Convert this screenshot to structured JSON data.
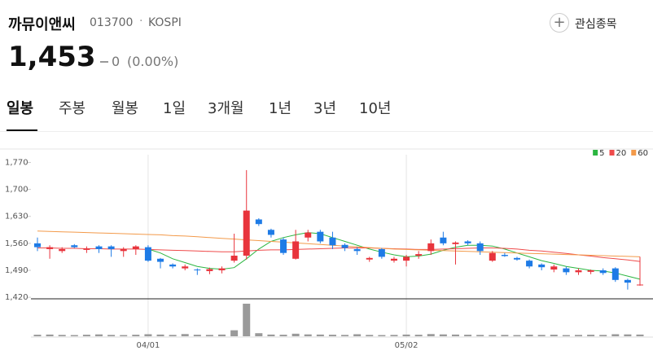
{
  "header": {
    "name": "까뮤이앤씨",
    "code": "013700",
    "market": "KOSPI",
    "watch": "관심종목",
    "price": "1,453",
    "change": "0",
    "change_pct": "(0.00%)"
  },
  "tabs": [
    "일봉",
    "주봉",
    "월봉",
    "1일",
    "3개월",
    "1년",
    "3년",
    "10년"
  ],
  "chart_data": {
    "type": "candlestick",
    "categories": [
      null,
      null,
      null,
      null,
      null,
      null,
      null,
      null,
      null,
      "04/01",
      null,
      null,
      null,
      null,
      null,
      null,
      null,
      null,
      null,
      null,
      null,
      null,
      null,
      null,
      null,
      null,
      null,
      null,
      null,
      null,
      "05/02",
      null,
      null,
      null,
      null,
      null,
      null,
      null,
      null,
      null,
      null,
      null,
      null,
      null,
      null,
      null,
      null,
      null,
      null,
      null
    ],
    "open": [
      1560,
      1545,
      1540,
      1555,
      1543,
      1552,
      1552,
      1540,
      1545,
      1550,
      1520,
      1505,
      1495,
      1492,
      1488,
      1490,
      1515,
      1528,
      1622,
      1595,
      1570,
      1520,
      1575,
      1590,
      1575,
      1556,
      1545,
      1518,
      1545,
      1515,
      1515,
      1528,
      1540,
      1575,
      1558,
      1565,
      1560,
      1515,
      1530,
      1522,
      1515,
      1505,
      1492,
      1495,
      1485,
      1486,
      1490,
      1495,
      1465,
      1453
    ],
    "high": [
      1575,
      1555,
      1550,
      1558,
      1552,
      1555,
      1555,
      1550,
      1555,
      1555,
      1522,
      1508,
      1505,
      1495,
      1497,
      1500,
      1585,
      1750,
      1625,
      1598,
      1575,
      1595,
      1595,
      1595,
      1590,
      1560,
      1550,
      1525,
      1548,
      1525,
      1530,
      1540,
      1570,
      1590,
      1565,
      1568,
      1565,
      1540,
      1535,
      1525,
      1518,
      1508,
      1505,
      1500,
      1495,
      1492,
      1495,
      1498,
      1468,
      1525
    ],
    "low": [
      1540,
      1520,
      1535,
      1548,
      1535,
      1535,
      1525,
      1525,
      1530,
      1512,
      1495,
      1495,
      1490,
      1478,
      1480,
      1482,
      1510,
      1518,
      1605,
      1575,
      1530,
      1518,
      1565,
      1560,
      1545,
      1540,
      1530,
      1512,
      1520,
      1510,
      1500,
      1520,
      1530,
      1555,
      1505,
      1555,
      1530,
      1512,
      1525,
      1515,
      1495,
      1490,
      1485,
      1478,
      1478,
      1480,
      1478,
      1460,
      1440,
      1450
    ],
    "close": [
      1550,
      1550,
      1545,
      1550,
      1547,
      1545,
      1545,
      1545,
      1552,
      1515,
      1512,
      1500,
      1500,
      1490,
      1493,
      1495,
      1528,
      1645,
      1610,
      1582,
      1535,
      1565,
      1588,
      1565,
      1555,
      1548,
      1540,
      1522,
      1525,
      1520,
      1525,
      1532,
      1560,
      1560,
      1562,
      1560,
      1540,
      1535,
      1527,
      1518,
      1500,
      1498,
      1500,
      1485,
      1490,
      1490,
      1483,
      1465,
      1458,
      1453
    ],
    "up_color": "#e8343c",
    "down_color": "#1e7be6",
    "ylim": [
      1416,
      1790
    ],
    "yticks": [
      {
        "value": 1420,
        "label": "1,420"
      },
      {
        "value": 1490,
        "label": "1,490"
      },
      {
        "value": 1560,
        "label": "1,560"
      },
      {
        "value": 1630,
        "label": "1,630"
      },
      {
        "value": 1700,
        "label": "1,700"
      },
      {
        "value": 1770,
        "label": "1,770"
      }
    ],
    "grid": false,
    "legend": "top-right",
    "series": [
      {
        "name": "5",
        "color": "#2bb640",
        "values": [
          null,
          null,
          null,
          null,
          null,
          null,
          null,
          null,
          null,
          1545,
          1535,
          1520,
          1510,
          1500,
          1495,
          1493,
          1497,
          1520,
          1545,
          1565,
          1575,
          1582,
          1588,
          1585,
          1575,
          1565,
          1555,
          1545,
          1537,
          1530,
          1525,
          1527,
          1532,
          1542,
          1550,
          1555,
          1555,
          1553,
          1545,
          1535,
          1525,
          1515,
          1508,
          1500,
          1495,
          1490,
          1488,
          1483,
          1475,
          1467
        ]
      },
      {
        "name": "20",
        "color": "#ef4b4b",
        "values": [
          1548,
          1548,
          1547,
          1547,
          1546,
          1546,
          1545,
          1545,
          1545,
          1544,
          1543,
          1542,
          1541,
          1540,
          1539,
          1538,
          1538,
          1540,
          1542,
          1543,
          1543,
          1544,
          1545,
          1546,
          1547,
          1548,
          1548,
          1548,
          1547,
          1546,
          1545,
          1544,
          1544,
          1545,
          1546,
          1547,
          1548,
          1548,
          1547,
          1545,
          1542,
          1540,
          1537,
          1534,
          1530,
          1527,
          1523,
          1520,
          1517,
          1513
        ]
      },
      {
        "name": "60",
        "color": "#f39a4a",
        "values": [
          1592,
          1591,
          1590,
          1589,
          1588,
          1587,
          1586,
          1585,
          1584,
          1583,
          1582,
          1580,
          1579,
          1577,
          1575,
          1573,
          1571,
          1569,
          1567,
          1565,
          1563,
          1561,
          1559,
          1557,
          1555,
          1553,
          1551,
          1549,
          1547,
          1545,
          1544,
          1543,
          1542,
          1541,
          1540,
          1539,
          1538,
          1537,
          1536,
          1535,
          1534,
          1533,
          1532,
          1531,
          1530,
          1529,
          1528,
          1527,
          1526,
          1525
        ]
      }
    ],
    "volume": [
      900,
      1000,
      800,
      700,
      900,
      1100,
      800,
      700,
      900,
      1200,
      1000,
      800,
      1300,
      900,
      800,
      1000,
      3500,
      19000,
      1800,
      1000,
      900,
      1500,
      1100,
      1000,
      900,
      800,
      1200,
      800,
      700,
      800,
      1000,
      900,
      1300,
      1100,
      1000,
      900,
      800,
      700,
      800,
      700,
      900,
      800,
      900,
      700,
      800,
      900,
      800,
      1200,
      1100,
      1000
    ],
    "volume_color": "#9a9a9a"
  }
}
